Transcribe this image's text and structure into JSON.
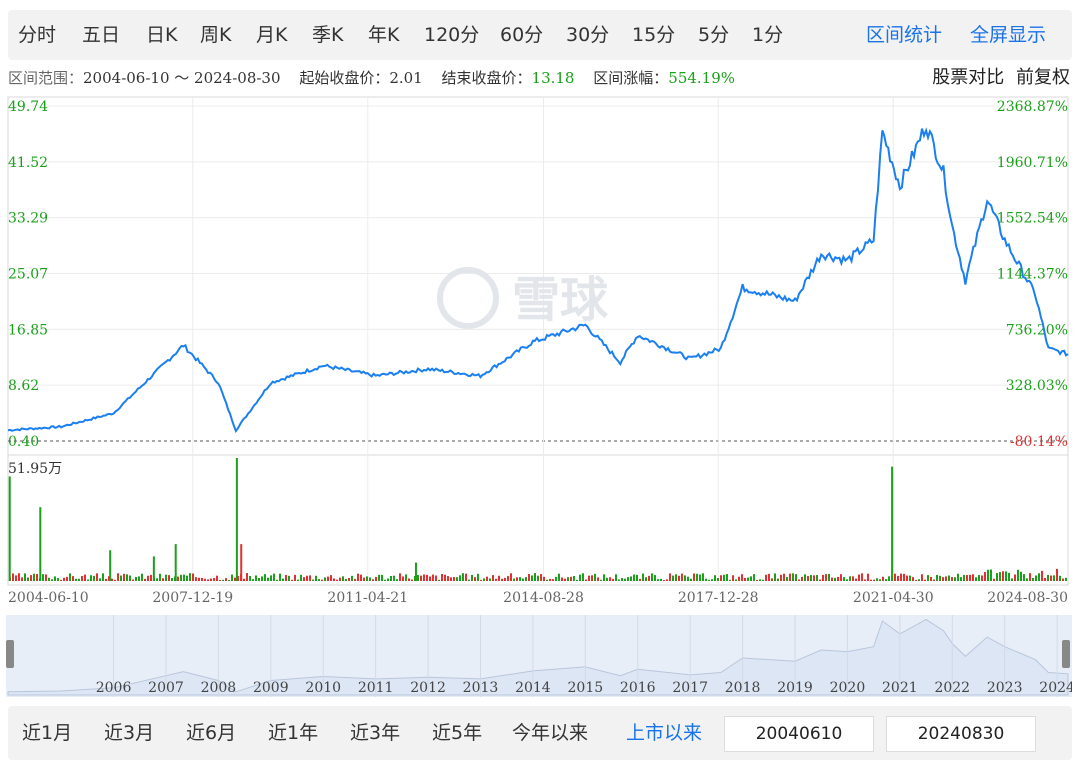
{
  "period_tabs": [
    "分时",
    "五日",
    "日K",
    "周K",
    "月K",
    "季K",
    "年K",
    "120分",
    "60分",
    "30分",
    "15分",
    "5分",
    "1分"
  ],
  "tools": {
    "range_stats": "区间统计",
    "fullscreen": "全屏显示"
  },
  "info": {
    "range_label": "区间范围：",
    "range_value": "2004-06-10 ～ 2024-08-30",
    "start_label": "起始收盘价：",
    "start_value": "2.01",
    "end_label": "结束收盘价：",
    "end_value": "13.18",
    "change_label": "区间涨幅：",
    "change_value": "554.19%"
  },
  "right_links": {
    "compare": "股票对比",
    "adjust": "前复权"
  },
  "chart_data": {
    "type": "line",
    "x_dates": [
      "2004-06-10",
      "2005-06",
      "2006-06",
      "2007-06",
      "2007-10",
      "2008-06",
      "2008-10",
      "2009-06",
      "2010-06",
      "2011-06",
      "2012-06",
      "2013-06",
      "2014-06",
      "2015-06",
      "2016-02",
      "2016-06",
      "2017-06",
      "2018-01",
      "2018-06",
      "2019-06",
      "2019-12",
      "2020-06",
      "2020-12",
      "2021-02",
      "2021-06",
      "2021-12",
      "2022-04",
      "2022-06",
      "2022-09",
      "2023-02",
      "2023-06",
      "2024-01",
      "2024-04",
      "2024-08-30"
    ],
    "price": [
      2.0,
      2.5,
      4.5,
      12,
      14.5,
      9,
      2.0,
      9,
      11.5,
      10,
      11,
      10,
      15,
      17.5,
      12,
      16,
      12.5,
      14,
      23,
      21,
      28,
      27,
      30,
      46,
      38,
      47,
      40,
      32,
      24,
      36,
      30,
      22,
      14,
      13.2
    ],
    "y_ticks_left": [
      "49.74",
      "41.52",
      "33.29",
      "25.07",
      "16.85",
      "8.62",
      "0.40"
    ],
    "y_ticks_right": [
      "2368.87%",
      "1960.71%",
      "1552.54%",
      "1144.37%",
      "736.20%",
      "328.03%",
      "-80.14%"
    ],
    "ylim": [
      0.4,
      49.74
    ],
    "x_tick_labels": [
      "2004-06-10",
      "2007-12-19",
      "2011-04-21",
      "2014-08-28",
      "2017-12-28",
      "2021-04-30",
      "2024-08-30"
    ],
    "volume_max_label": "51.95万",
    "volume_spikes": [
      {
        "date": "2004-06",
        "value": 0.85,
        "color": "green"
      },
      {
        "date": "2005-01",
        "value": 0.6,
        "color": "green"
      },
      {
        "date": "2006-05",
        "value": 0.25,
        "color": "green"
      },
      {
        "date": "2007-03",
        "value": 0.2,
        "color": "green"
      },
      {
        "date": "2007-08",
        "value": 0.3,
        "color": "green"
      },
      {
        "date": "2008-10",
        "value": 1.0,
        "color": "green"
      },
      {
        "date": "2008-11",
        "value": 0.3,
        "color": "red"
      },
      {
        "date": "2012-03",
        "value": 0.15,
        "color": "green"
      },
      {
        "date": "2021-04",
        "value": 0.93,
        "color": "green"
      }
    ],
    "nav_years": [
      "2006",
      "2007",
      "2008",
      "2009",
      "2010",
      "2011",
      "2012",
      "2013",
      "2014",
      "2015",
      "2016",
      "2017",
      "2018",
      "2019",
      "2020",
      "2021",
      "2022",
      "2023",
      "2024"
    ],
    "colors": {
      "line": "#1a7ff0",
      "axis_left": "#1aa01a",
      "axis_right": "#1aa01a",
      "axis_negative": "#e03030",
      "vol_green": "#1aa01a",
      "vol_red": "#e03030",
      "nav_fill": "#dde6f4"
    }
  },
  "watermark": "雪球",
  "quick_ranges": [
    "近1月",
    "近3月",
    "近6月",
    "近1年",
    "近3年",
    "近5年",
    "今年以来",
    "上市以来"
  ],
  "active_range": "上市以来",
  "date_inputs": {
    "start": "20040610",
    "end": "20240830"
  }
}
